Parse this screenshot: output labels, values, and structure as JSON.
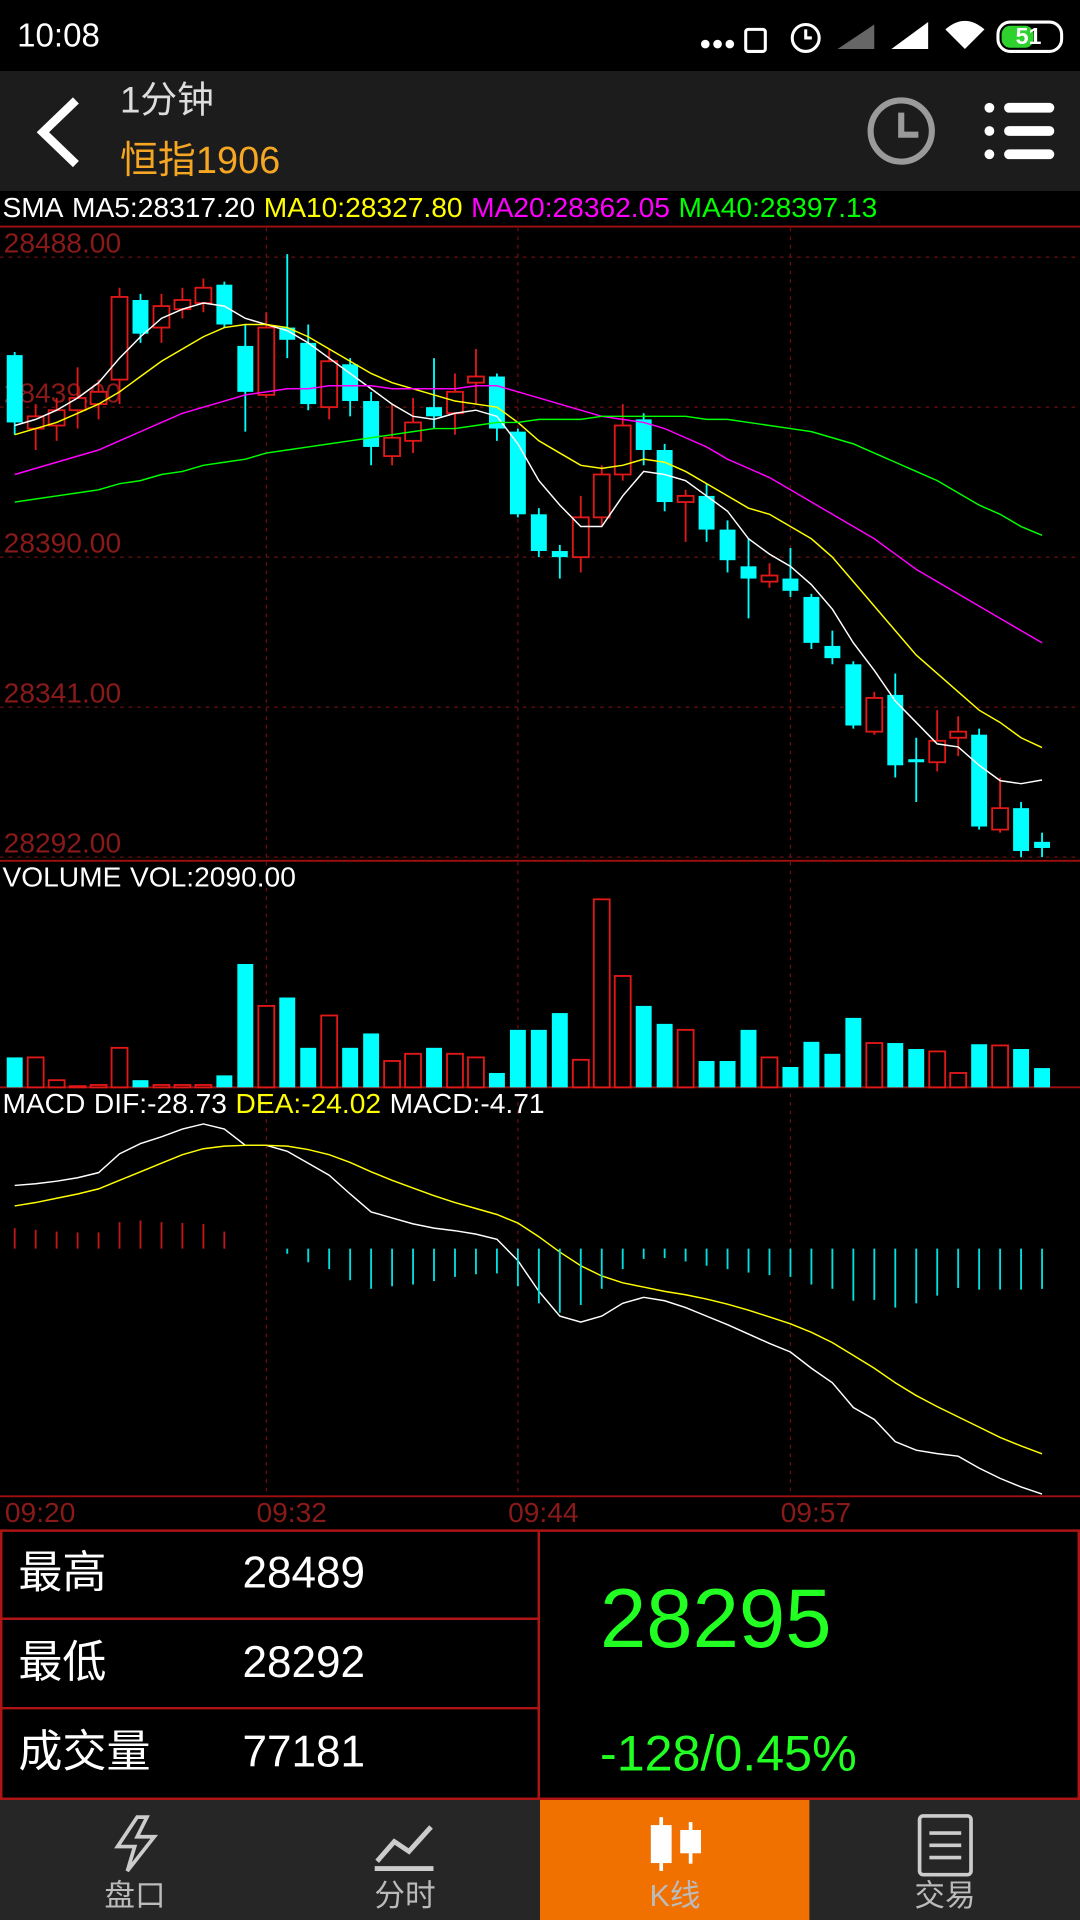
{
  "status_bar": {
    "time": "10:08",
    "battery": "51"
  },
  "header": {
    "period": "1分钟",
    "symbol": "恒指1906"
  },
  "chart_data": [
    {
      "type": "candlestick",
      "title": "SMA",
      "categories": [
        "09:20",
        null,
        null,
        null,
        null,
        null,
        null,
        null,
        null,
        null,
        null,
        null,
        "09:32",
        null,
        null,
        null,
        null,
        null,
        null,
        null,
        null,
        null,
        null,
        null,
        "09:44",
        null,
        null,
        null,
        null,
        null,
        null,
        null,
        null,
        null,
        null,
        null,
        null,
        "09:57",
        null,
        null,
        null,
        null,
        null,
        null,
        null,
        null,
        null,
        null,
        null,
        null
      ],
      "open": [
        28456,
        28432,
        28433,
        28438,
        28440,
        28448,
        28474,
        28465,
        28471,
        28473,
        28479,
        28459,
        28443,
        28465,
        28460,
        28439,
        28453,
        28441,
        28423,
        28428,
        28439,
        28437,
        28447,
        28449,
        28431,
        28404,
        28392,
        28390,
        28403,
        28417,
        28435,
        28425,
        28408,
        28410,
        28399,
        28387,
        28382,
        28383,
        28377,
        28361,
        28355,
        28333,
        28345,
        28324,
        28323,
        28331,
        28332,
        28301,
        28308,
        28297
      ],
      "high": [
        28457,
        28440,
        28442,
        28452,
        28448,
        28478,
        28476,
        28476,
        28478,
        28481,
        28480,
        28466,
        28470,
        28489,
        28466,
        28458,
        28455,
        28444,
        28440,
        28442,
        28455,
        28450,
        28458,
        28450,
        28432,
        28406,
        28394,
        28410,
        28420,
        28440,
        28437,
        28427,
        28412,
        28414,
        28402,
        28396,
        28388,
        28393,
        28378,
        28366,
        28356,
        28346,
        28352,
        28331,
        28340,
        28338,
        28334,
        28318,
        28310,
        28300
      ],
      "low": [
        28430,
        28425,
        28428,
        28432,
        28435,
        28440,
        28460,
        28460,
        28468,
        28470,
        28465,
        28431,
        28442,
        28455,
        28438,
        28435,
        28436,
        28420,
        28420,
        28424,
        28432,
        28430,
        28440,
        28428,
        28403,
        28390,
        28383,
        28385,
        28400,
        28415,
        28420,
        28405,
        28395,
        28395,
        28385,
        28370,
        28380,
        28377,
        28360,
        28355,
        28334,
        28332,
        28318,
        28310,
        28320,
        28325,
        28301,
        28300,
        28292,
        28292
      ],
      "close": [
        28434,
        28436,
        28438,
        28442,
        28444,
        28475,
        28463,
        28472,
        28474,
        28478,
        28466,
        28444,
        28465,
        28461,
        28440,
        28454,
        28441,
        28426,
        28429,
        28434,
        28436,
        28444,
        28449,
        28432,
        28404,
        28392,
        28390,
        28403,
        28417,
        28433,
        28425,
        28408,
        28410,
        28399,
        28389,
        28383,
        28384,
        28379,
        28362,
        28357,
        28335,
        28344,
        28322,
        28323,
        28330,
        28333,
        28302,
        28308,
        28294,
        28295
      ],
      "up_color": "#e01818",
      "down_color": "#00ffff",
      "series": [
        {
          "name": "MA5:28317.20",
          "color": "#ffffff",
          "values": [
            28433,
            28435,
            28438,
            28442,
            28447,
            28455,
            28462,
            28468,
            28471,
            28473,
            28472,
            28468,
            28466,
            28464,
            28460,
            28455,
            28450,
            28445,
            28440,
            28436,
            28435,
            28437,
            28438,
            28436,
            28427,
            28415,
            28407,
            28400,
            28400,
            28410,
            28418,
            28417,
            28415,
            28410,
            28405,
            28396,
            28391,
            28387,
            28381,
            28373,
            28362,
            28353,
            28343,
            28336,
            28329,
            28328,
            28322,
            28317,
            28316,
            28317.2
          ]
        },
        {
          "name": "MA10:28327.80",
          "color": "#ffff00",
          "values": [
            28430,
            28432,
            28434,
            28437,
            28440,
            28444,
            28449,
            28454,
            28458,
            28462,
            28465,
            28466,
            28466,
            28465,
            28462,
            28458,
            28454,
            28450,
            28447,
            28445,
            28443,
            28441,
            28440,
            28439,
            28434,
            28428,
            28424,
            28420,
            28419,
            28420,
            28422,
            28421,
            28418,
            28414,
            28410,
            28406,
            28404,
            28400,
            28396,
            28390,
            28382,
            28374,
            28366,
            28358,
            28352,
            28346,
            28340,
            28336,
            28331,
            28327.8
          ]
        },
        {
          "name": "MA20:28362.05",
          "color": "#ff00ff",
          "values": [
            28417,
            28419,
            28421,
            28423,
            28425,
            28428,
            28431,
            28434,
            28437,
            28439,
            28441,
            28443,
            28444,
            28445,
            28445,
            28446,
            28446,
            28446,
            28445,
            28445,
            28445,
            28445,
            28446,
            28446,
            28444,
            28442,
            28440,
            28438,
            28436,
            28435,
            28434,
            28432,
            28429,
            28426,
            28422,
            28419,
            28416,
            28412,
            28408,
            28404,
            28400,
            28396,
            28391,
            28386,
            28382,
            28378,
            28374,
            28370,
            28366,
            28362.05
          ]
        },
        {
          "name": "MA40:28397.13",
          "color": "#00ff00",
          "values": [
            28408,
            28409,
            28410,
            28411,
            28412,
            28414,
            28415,
            28417,
            28418,
            28420,
            28421,
            28422,
            28424,
            28425,
            28426,
            28427,
            28428,
            28429,
            28430,
            28431,
            28432,
            28432,
            28433,
            28434,
            28434,
            28435,
            28435,
            28435,
            28436,
            28436,
            28436,
            28436,
            28436,
            28435,
            28435,
            28434,
            28433,
            28432,
            28431,
            28429,
            28427,
            28424,
            28421,
            28418,
            28415,
            28411,
            28407,
            28404,
            28400,
            28397.13
          ]
        }
      ],
      "ylim": [
        28292,
        28488
      ],
      "yticks": [
        {
          "value": 28488,
          "label": "28488.00"
        },
        {
          "value": 28439,
          "label": "28439.00"
        },
        {
          "value": 28390,
          "label": "28390.00"
        },
        {
          "value": 28341,
          "label": "28341.00"
        },
        {
          "value": 28292,
          "label": "28292.00"
        }
      ],
      "grid": true
    },
    {
      "type": "bar",
      "title": "VOLUME",
      "series": [
        {
          "name": "VOL:2090.00",
          "color": "#ffffff",
          "values": [
            3250,
            3250,
            780,
            130,
            260,
            4290,
            780,
            260,
            260,
            260,
            1300,
            13390,
            8840,
            9750,
            4290,
            7800,
            4290,
            5850,
            2860,
            3640,
            4290,
            3640,
            3250,
            1560,
            6240,
            6240,
            8060,
            2990,
            20410,
            12090,
            8840,
            6890,
            6240,
            2860,
            2860,
            6240,
            3250,
            2210,
            4940,
            3640,
            7540,
            4810,
            4810,
            4160,
            3900,
            1560,
            4680,
            4550,
            4160,
            2090
          ]
        }
      ],
      "up_color": "#e01818",
      "down_color": "#00ffff",
      "ylim": [
        0,
        21000
      ]
    },
    {
      "type": "macd",
      "title": "MACD",
      "series": [
        {
          "name": "DIF:-28.73",
          "color": "#ffffff",
          "values": [
            7.4,
            7.6,
            7.9,
            8.3,
            8.9,
            11.1,
            12.3,
            13.1,
            14.0,
            14.6,
            14.0,
            12.1,
            12.1,
            11.4,
            10.0,
            8.6,
            6.4,
            4.3,
            3.6,
            2.9,
            2.4,
            2.1,
            1.7,
            1.1,
            -1.4,
            -5.0,
            -7.9,
            -8.6,
            -7.9,
            -6.4,
            -5.7,
            -6.1,
            -6.9,
            -7.9,
            -8.9,
            -10.0,
            -11.1,
            -12.1,
            -14.0,
            -15.7,
            -18.6,
            -20.0,
            -22.6,
            -23.6,
            -24.0,
            -24.3,
            -25.7,
            -26.9,
            -27.9,
            -28.73
          ]
        },
        {
          "name": "DEA:-24.02",
          "color": "#ffff00",
          "values": [
            5.0,
            5.4,
            5.9,
            6.4,
            7.0,
            8.0,
            9.0,
            10.0,
            11.0,
            11.7,
            12.0,
            12.1,
            12.1,
            12.0,
            11.6,
            11.0,
            10.1,
            9.0,
            8.0,
            7.1,
            6.2,
            5.4,
            4.7,
            4.0,
            3.0,
            1.4,
            -0.4,
            -2.0,
            -3.2,
            -4.0,
            -4.5,
            -5.0,
            -5.4,
            -5.9,
            -6.5,
            -7.2,
            -8.0,
            -8.8,
            -9.8,
            -11.0,
            -12.5,
            -14.0,
            -15.7,
            -17.2,
            -18.5,
            -19.7,
            -20.9,
            -22.1,
            -23.1,
            -24.02
          ]
        },
        {
          "name": "MACD:-4.71",
          "color": "#ffffff",
          "style": "histogram",
          "values": [
            2.4,
            2.2,
            2.0,
            1.9,
            1.9,
            3.1,
            3.3,
            3.1,
            3.0,
            2.9,
            2.0,
            0,
            0,
            -0.6,
            -1.6,
            -2.4,
            -3.7,
            -4.7,
            -4.4,
            -4.2,
            -3.8,
            -3.3,
            -3.0,
            -2.9,
            -4.4,
            -6.4,
            -7.5,
            -6.6,
            -4.7,
            -2.4,
            -1.2,
            -1.1,
            -1.5,
            -2.0,
            -2.4,
            -2.8,
            -3.1,
            -3.3,
            -4.2,
            -4.7,
            -6.1,
            -6.0,
            -6.9,
            -6.4,
            -5.5,
            -4.6,
            -4.8,
            -4.8,
            -4.8,
            -4.71
          ]
        }
      ],
      "up_color": "#c01818",
      "down_color": "#00e0e0",
      "ylim": [
        -29,
        18.6
      ]
    }
  ],
  "stats": {
    "rows": [
      {
        "label": "最高",
        "value": 28489,
        "color": "#ff2020"
      },
      {
        "label": "最低",
        "value": 28292,
        "color": "#20ff20"
      },
      {
        "label": "成交量",
        "value": 77181,
        "color": "#ffffff"
      }
    ]
  },
  "quote": {
    "price": 28295,
    "change": "-128/0.45%",
    "color": "#22ff22"
  },
  "tabs": {
    "items": [
      "盘口",
      "分时",
      "K线",
      "交易"
    ],
    "active": 2
  }
}
